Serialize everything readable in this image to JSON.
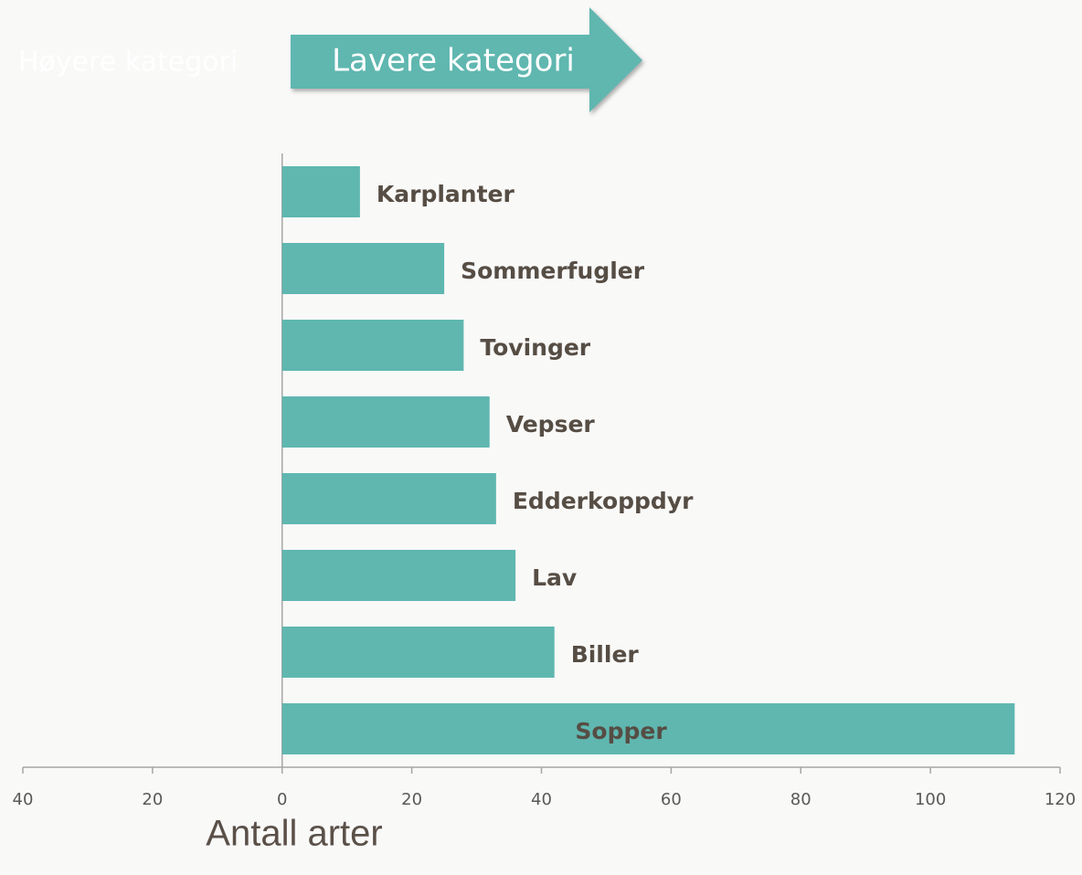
{
  "chart_data": {
    "type": "bar",
    "orientation": "horizontal",
    "annotations": [
      "Høyere kategori",
      "Lavere kategori"
    ],
    "x_label": "Antall arter",
    "categories": [
      "Karplanter",
      "Sommerfugler",
      "Tovinger",
      "Vepser",
      "Edderkoppdyr",
      "Lav",
      "Biller",
      "Sopper"
    ],
    "values": [
      12,
      25,
      28,
      32,
      33,
      36,
      42,
      113
    ],
    "color": "#5fb7b0",
    "xlim": [
      -40,
      120
    ],
    "xticks": [
      {
        "value": -40,
        "label": "40"
      },
      {
        "value": -20,
        "label": "20"
      },
      0,
      20,
      40,
      60,
      80,
      100,
      120
    ]
  }
}
